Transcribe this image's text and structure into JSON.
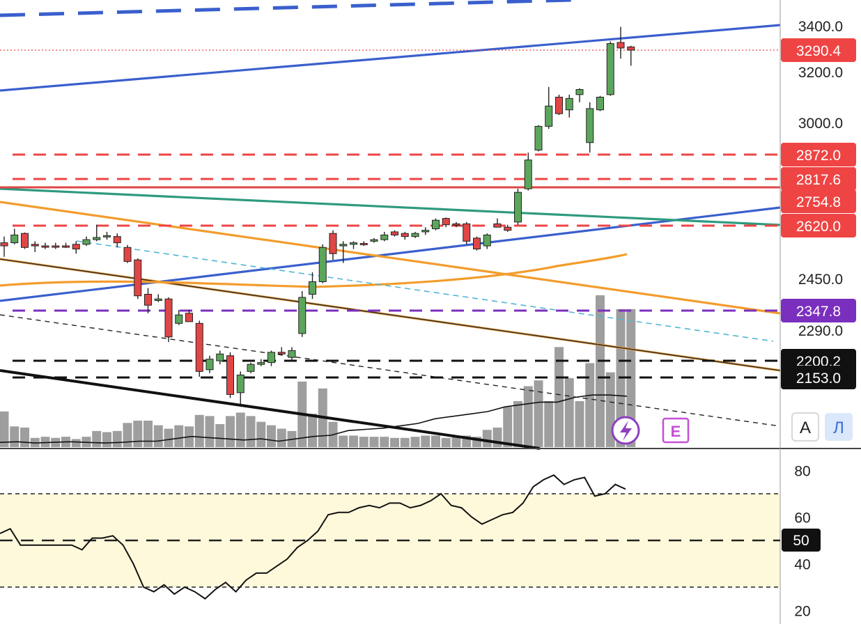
{
  "chart_data": [
    {
      "type": "candlestick",
      "panel": "price",
      "y_axis": {
        "ticks": [
          3400.0,
          3200.0,
          3000.0,
          2450.0,
          2290.0
        ],
        "tick_labels": [
          "3400.0",
          "3200.0",
          "3000.0",
          "2450.0",
          "2290.0"
        ]
      },
      "price_labels": [
        {
          "value": 3290.4,
          "text": "3290.4",
          "color": "#ef4444",
          "line": "dotted"
        },
        {
          "value": 2872.0,
          "text": "2872.0",
          "color": "#ef4444",
          "line": "dashed"
        },
        {
          "value": 2817.6,
          "text": "2817.6",
          "color": "#ef4444",
          "line": "dashed"
        },
        {
          "value": 2754.8,
          "text": "2754.8",
          "color": "#ef4444",
          "line": "solid"
        },
        {
          "value": 2620.0,
          "text": "2620.0",
          "color": "#ef4444",
          "line": "dashed"
        },
        {
          "value": 2347.8,
          "text": "2347.8",
          "color": "#7b2fbe",
          "line": "dashed"
        },
        {
          "value": 2200.2,
          "text": "2200.2",
          "color": "#111111",
          "line": "dashed"
        },
        {
          "value": 2153.0,
          "text": "2153.0",
          "color": "#111111",
          "line": "dashed"
        }
      ],
      "candles": [
        {
          "o": 2565,
          "h": 2585,
          "l": 2520,
          "c": 2555
        },
        {
          "o": 2565,
          "h": 2610,
          "l": 2560,
          "c": 2590
        },
        {
          "o": 2595,
          "h": 2598,
          "l": 2545,
          "c": 2550
        },
        {
          "o": 2560,
          "h": 2570,
          "l": 2535,
          "c": 2555
        },
        {
          "o": 2555,
          "h": 2565,
          "l": 2545,
          "c": 2552
        },
        {
          "o": 2555,
          "h": 2565,
          "l": 2545,
          "c": 2552
        },
        {
          "o": 2555,
          "h": 2565,
          "l": 2548,
          "c": 2552
        },
        {
          "o": 2560,
          "h": 2570,
          "l": 2530,
          "c": 2545
        },
        {
          "o": 2560,
          "h": 2585,
          "l": 2555,
          "c": 2575
        },
        {
          "o": 2575,
          "h": 2625,
          "l": 2570,
          "c": 2582
        },
        {
          "o": 2585,
          "h": 2600,
          "l": 2575,
          "c": 2588
        },
        {
          "o": 2585,
          "h": 2595,
          "l": 2550,
          "c": 2565
        },
        {
          "o": 2550,
          "h": 2558,
          "l": 2500,
          "c": 2505
        },
        {
          "o": 2510,
          "h": 2515,
          "l": 2385,
          "c": 2395
        },
        {
          "o": 2400,
          "h": 2420,
          "l": 2340,
          "c": 2365
        },
        {
          "o": 2380,
          "h": 2400,
          "l": 2375,
          "c": 2385
        },
        {
          "o": 2385,
          "h": 2390,
          "l": 2255,
          "c": 2270
        },
        {
          "o": 2310,
          "h": 2350,
          "l": 2305,
          "c": 2335
        },
        {
          "o": 2340,
          "h": 2350,
          "l": 2320,
          "c": 2315
        },
        {
          "o": 2310,
          "h": 2318,
          "l": 2155,
          "c": 2170
        },
        {
          "o": 2175,
          "h": 2215,
          "l": 2165,
          "c": 2205
        },
        {
          "o": 2200,
          "h": 2230,
          "l": 2190,
          "c": 2220
        },
        {
          "o": 2215,
          "h": 2225,
          "l": 2095,
          "c": 2105
        },
        {
          "o": 2110,
          "h": 2170,
          "l": 2075,
          "c": 2160
        },
        {
          "o": 2170,
          "h": 2195,
          "l": 2165,
          "c": 2190
        },
        {
          "o": 2190,
          "h": 2205,
          "l": 2185,
          "c": 2195
        },
        {
          "o": 2195,
          "h": 2230,
          "l": 2185,
          "c": 2225
        },
        {
          "o": 2225,
          "h": 2240,
          "l": 2215,
          "c": 2220
        },
        {
          "o": 2210,
          "h": 2240,
          "l": 2200,
          "c": 2230
        },
        {
          "o": 2280,
          "h": 2410,
          "l": 2270,
          "c": 2390
        },
        {
          "o": 2400,
          "h": 2470,
          "l": 2385,
          "c": 2440
        },
        {
          "o": 2440,
          "h": 2560,
          "l": 2435,
          "c": 2550
        },
        {
          "o": 2595,
          "h": 2605,
          "l": 2510,
          "c": 2530
        },
        {
          "o": 2555,
          "h": 2570,
          "l": 2500,
          "c": 2560
        },
        {
          "o": 2560,
          "h": 2570,
          "l": 2545,
          "c": 2565
        },
        {
          "o": 2563,
          "h": 2570,
          "l": 2555,
          "c": 2562
        },
        {
          "o": 2570,
          "h": 2580,
          "l": 2565,
          "c": 2575
        },
        {
          "o": 2575,
          "h": 2600,
          "l": 2570,
          "c": 2590
        },
        {
          "o": 2600,
          "h": 2605,
          "l": 2585,
          "c": 2590
        },
        {
          "o": 2595,
          "h": 2600,
          "l": 2575,
          "c": 2585
        },
        {
          "o": 2585,
          "h": 2600,
          "l": 2580,
          "c": 2595
        },
        {
          "o": 2600,
          "h": 2615,
          "l": 2590,
          "c": 2605
        },
        {
          "o": 2610,
          "h": 2660,
          "l": 2605,
          "c": 2650
        },
        {
          "o": 2660,
          "h": 2665,
          "l": 2615,
          "c": 2625
        },
        {
          "o": 2630,
          "h": 2640,
          "l": 2615,
          "c": 2625
        },
        {
          "o": 2630,
          "h": 2640,
          "l": 2560,
          "c": 2570
        },
        {
          "o": 2580,
          "h": 2585,
          "l": 2540,
          "c": 2545
        },
        {
          "o": 2555,
          "h": 2595,
          "l": 2545,
          "c": 2590
        },
        {
          "o": 2630,
          "h": 2660,
          "l": 2615,
          "c": 2615
        },
        {
          "o": 2615,
          "h": 2625,
          "l": 2600,
          "c": 2605
        },
        {
          "o": 2640,
          "h": 2790,
          "l": 2625,
          "c": 2780
        },
        {
          "o": 2790,
          "h": 2880,
          "l": 2785,
          "c": 2860
        },
        {
          "o": 2890,
          "h": 2990,
          "l": 2885,
          "c": 2985
        },
        {
          "o": 2985,
          "h": 3140,
          "l": 2975,
          "c": 3065
        },
        {
          "o": 3100,
          "h": 3110,
          "l": 3030,
          "c": 3035
        },
        {
          "o": 3050,
          "h": 3110,
          "l": 3020,
          "c": 3095
        },
        {
          "o": 3110,
          "h": 3135,
          "l": 3080,
          "c": 3130
        },
        {
          "o": 2920,
          "h": 3080,
          "l": 2880,
          "c": 3055
        },
        {
          "o": 3050,
          "h": 3105,
          "l": 3045,
          "c": 3100
        },
        {
          "o": 3110,
          "h": 3330,
          "l": 3105,
          "c": 3320
        },
        {
          "o": 3325,
          "h": 3395,
          "l": 3255,
          "c": 3300
        },
        {
          "o": 3305,
          "h": 3310,
          "l": 3225,
          "c": 3290.4
        }
      ],
      "volume": [
        31,
        18,
        17,
        8,
        9,
        8,
        9,
        7,
        9,
        14,
        13,
        14,
        21,
        23,
        23,
        19,
        16,
        19,
        18,
        28,
        27,
        20,
        27,
        30,
        27,
        22,
        19,
        16,
        14,
        57,
        29,
        51,
        22,
        10,
        10,
        9,
        9,
        9,
        8,
        8,
        9,
        10,
        10,
        8,
        9,
        10,
        9,
        15,
        17,
        35,
        40,
        53,
        58,
        40,
        87,
        60,
        40,
        73,
        132,
        65,
        120,
        120
      ],
      "volume_ma": [
        0.04,
        0.045,
        0.035,
        0.04,
        0.045,
        0.04,
        0.035,
        0.04,
        0.05,
        0.05,
        0.07,
        0.09,
        0.08,
        0.07,
        0.06,
        0.07,
        0.05,
        0.07,
        0.09,
        0.1,
        0.14,
        0.15,
        0.16,
        0.18,
        0.2,
        0.24,
        0.26,
        0.28,
        0.3,
        0.34,
        0.36,
        0.38,
        0.38,
        0.42,
        0.44,
        0.44,
        0.43
      ],
      "indicators": {
        "volume_badge": "lightning-icon",
        "earnings_badge": "E"
      }
    },
    {
      "type": "line",
      "panel": "oscillator",
      "y_axis": {
        "ticks": [
          80,
          60,
          40,
          20
        ],
        "tick_labels": [
          "80",
          "60",
          "40",
          "20"
        ]
      },
      "upper_band": 70,
      "lower_band": 30,
      "middle_line": {
        "value": 50,
        "text": "50"
      },
      "values": [
        53,
        55,
        48,
        48,
        48,
        48,
        48,
        48,
        46,
        51,
        51,
        52,
        48,
        40,
        30,
        28,
        31,
        27,
        30,
        28,
        25,
        29,
        32,
        28,
        33,
        36,
        36,
        39,
        42,
        47,
        50,
        54,
        61,
        62,
        62,
        64,
        65,
        64,
        66,
        66,
        64,
        65,
        67,
        70,
        65,
        64,
        60,
        57,
        59,
        61,
        62,
        66,
        73,
        76,
        78,
        74,
        76,
        77,
        69,
        70,
        74,
        72
      ]
    }
  ],
  "controls": {
    "auto_scale_label": "A",
    "log_scale_label": "Л"
  },
  "colors": {
    "bull": "#5ca65c",
    "bear": "#e04646",
    "blue_line": "#3a5fcd",
    "orange_line": "#f39c2c",
    "green_line": "#2e9a7e",
    "red_line": "#e04646",
    "band_fill": "#fff9db"
  }
}
